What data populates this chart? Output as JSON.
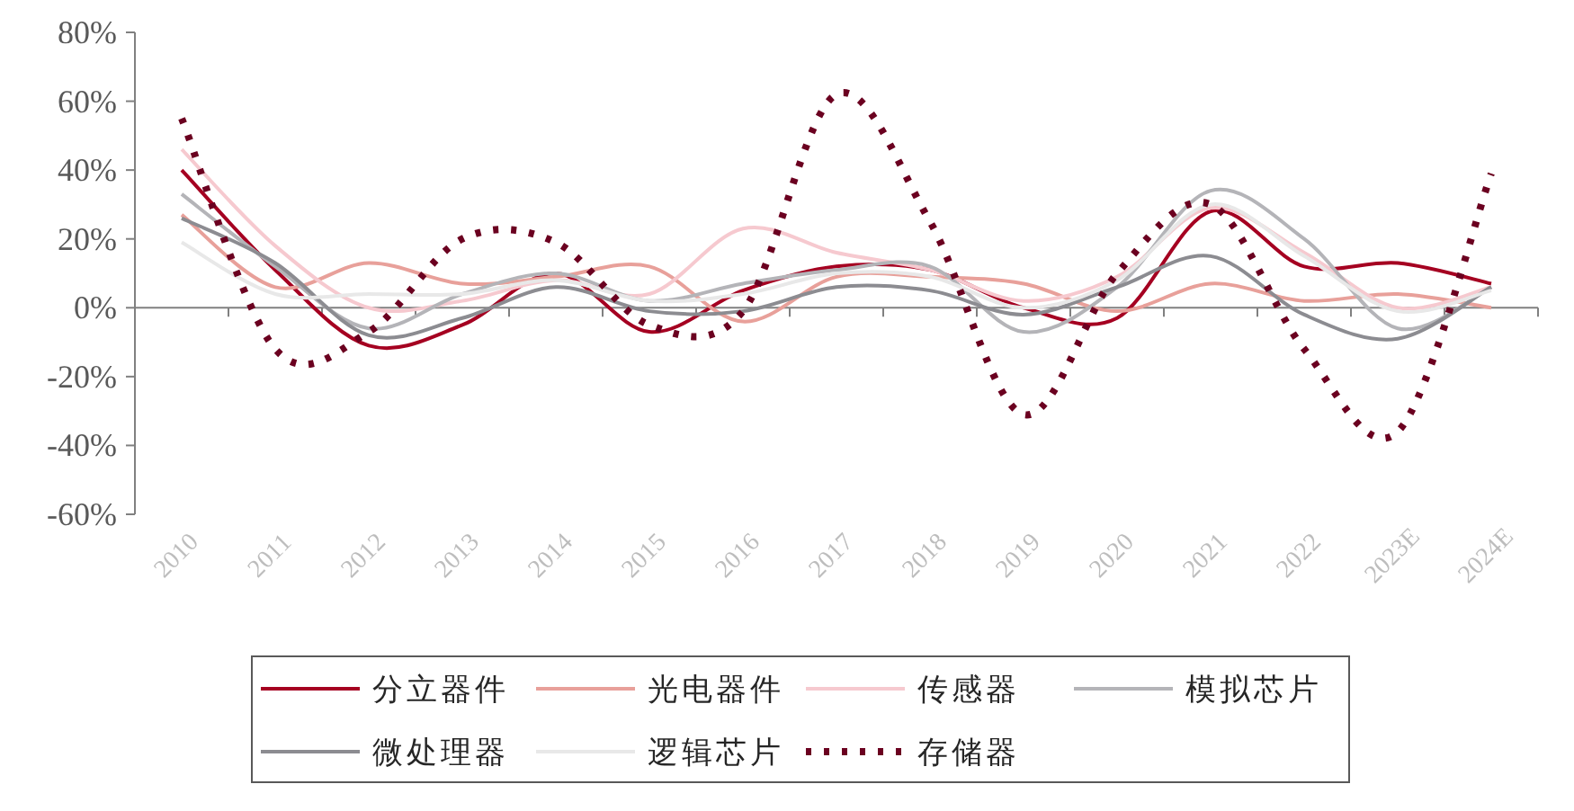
{
  "chart_data": {
    "type": "line",
    "categories": [
      "2010",
      "2011",
      "2012",
      "2013",
      "2014",
      "2015",
      "2016",
      "2017",
      "2018",
      "2019",
      "2020",
      "2021",
      "2022",
      "2023E",
      "2024E"
    ],
    "ylim": [
      -60,
      80
    ],
    "yticks": [
      {
        "value": -60,
        "label": "-60%"
      },
      {
        "value": -40,
        "label": "-40%"
      },
      {
        "value": -20,
        "label": "-20%"
      },
      {
        "value": 0,
        "label": "0%"
      },
      {
        "value": 20,
        "label": "20%"
      },
      {
        "value": 40,
        "label": "40%"
      },
      {
        "value": 60,
        "label": "60%"
      },
      {
        "value": 80,
        "label": "80%"
      }
    ],
    "legend": "bottom",
    "series": [
      {
        "name": "分立器件",
        "color": "#a50021",
        "line_style": "solid",
        "values": [
          40,
          11,
          -11,
          -5,
          10,
          -7,
          5,
          12,
          11,
          0,
          -3,
          28,
          12,
          13,
          7
        ]
      },
      {
        "name": "光电器件",
        "color": "#e8a09a",
        "line_style": "solid",
        "values": [
          27,
          6,
          13,
          7,
          9,
          12,
          -4,
          9,
          9,
          7,
          -1,
          7,
          2,
          4,
          0
        ]
      },
      {
        "name": "传感器",
        "color": "#f6c9cf",
        "line_style": "solid",
        "values": [
          46,
          18,
          0,
          2,
          8,
          4,
          23,
          16,
          11,
          2,
          9,
          29,
          16,
          0,
          6
        ]
      },
      {
        "name": "模拟芯片",
        "color": "#b4b4b8",
        "line_style": "solid",
        "values": [
          33,
          12,
          -6,
          4,
          10,
          2,
          7,
          11,
          12,
          -7,
          6,
          34,
          20,
          -6,
          6
        ]
      },
      {
        "name": "微处理器",
        "color": "#8c8c91",
        "line_style": "solid",
        "values": [
          26,
          13,
          -8,
          -3,
          6,
          -1,
          -1,
          6,
          5,
          -2,
          6,
          15,
          -2,
          -9,
          6
        ]
      },
      {
        "name": "逻辑芯片",
        "color": "#e8e8e8",
        "line_style": "solid",
        "values": [
          19,
          4,
          4,
          4,
          8,
          2,
          4,
          10,
          9,
          0,
          8,
          30,
          15,
          -1,
          5
        ]
      },
      {
        "name": "存储器",
        "color": "#6b0020",
        "line_style": "dotted",
        "values": [
          55,
          -12,
          -7,
          20,
          19,
          -5,
          -1,
          62,
          25,
          -31,
          10,
          30,
          -12,
          -36,
          39
        ]
      }
    ]
  }
}
